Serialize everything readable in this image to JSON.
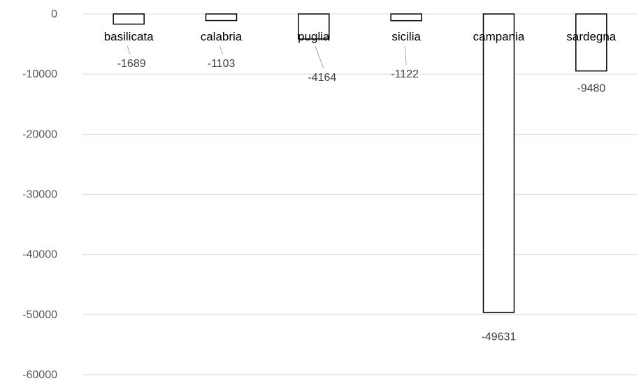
{
  "chart_data": {
    "type": "bar",
    "categories": [
      "basilicata",
      "calabria",
      "puglia",
      "sicilia",
      "campania",
      "sardegna"
    ],
    "values": [
      -1689,
      -1103,
      -4164,
      -1122,
      -49631,
      -9480
    ],
    "data_labels": [
      "-1689",
      "-1103",
      "-4164",
      "-1122",
      "-49631",
      "-9480"
    ],
    "ylim": [
      -60000,
      0
    ],
    "yticks": [
      0,
      -10000,
      -20000,
      -30000,
      -40000,
      -50000,
      -60000
    ],
    "ytick_labels": [
      "0",
      "-10000",
      "-20000",
      "-30000",
      "-40000",
      "-50000",
      "-60000"
    ],
    "grid": true,
    "bar_fill": "#ffffff",
    "bar_stroke": "#000000"
  }
}
